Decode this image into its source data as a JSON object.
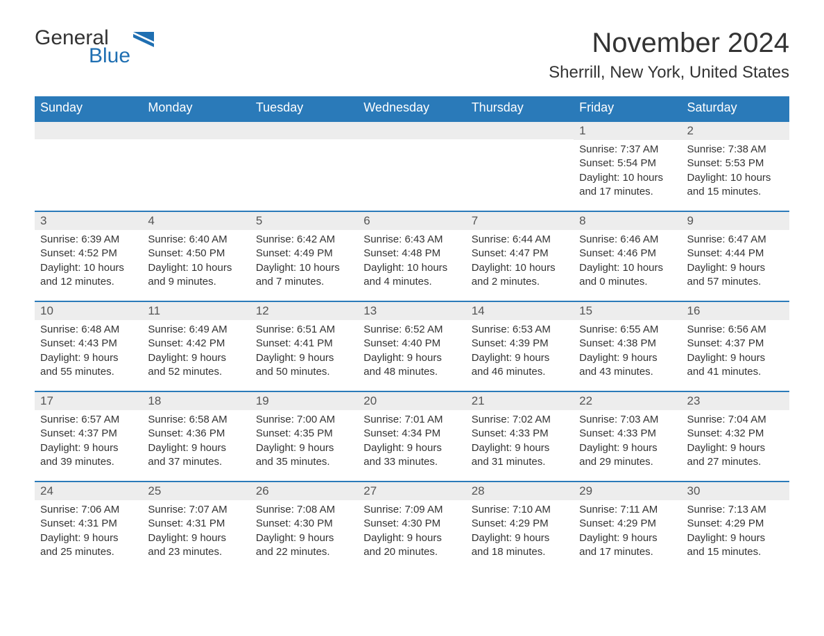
{
  "brand": {
    "word1": "General",
    "word2": "Blue",
    "word1_color": "#333333",
    "word2_color": "#1f6fb2",
    "flag_color": "#1f6fb2"
  },
  "title": "November 2024",
  "location": "Sherrill, New York, United States",
  "colors": {
    "header_bg": "#2a7ab9",
    "header_text": "#ffffff",
    "row_border": "#2a7ab9",
    "daynum_bg": "#ededed",
    "body_text": "#333333",
    "background": "#ffffff"
  },
  "day_names": [
    "Sunday",
    "Monday",
    "Tuesday",
    "Wednesday",
    "Thursday",
    "Friday",
    "Saturday"
  ],
  "weeks": [
    [
      null,
      null,
      null,
      null,
      null,
      {
        "n": "1",
        "sunrise": "7:37 AM",
        "sunset": "5:54 PM",
        "dl1": "Daylight: 10 hours",
        "dl2": "and 17 minutes."
      },
      {
        "n": "2",
        "sunrise": "7:38 AM",
        "sunset": "5:53 PM",
        "dl1": "Daylight: 10 hours",
        "dl2": "and 15 minutes."
      }
    ],
    [
      {
        "n": "3",
        "sunrise": "6:39 AM",
        "sunset": "4:52 PM",
        "dl1": "Daylight: 10 hours",
        "dl2": "and 12 minutes."
      },
      {
        "n": "4",
        "sunrise": "6:40 AM",
        "sunset": "4:50 PM",
        "dl1": "Daylight: 10 hours",
        "dl2": "and 9 minutes."
      },
      {
        "n": "5",
        "sunrise": "6:42 AM",
        "sunset": "4:49 PM",
        "dl1": "Daylight: 10 hours",
        "dl2": "and 7 minutes."
      },
      {
        "n": "6",
        "sunrise": "6:43 AM",
        "sunset": "4:48 PM",
        "dl1": "Daylight: 10 hours",
        "dl2": "and 4 minutes."
      },
      {
        "n": "7",
        "sunrise": "6:44 AM",
        "sunset": "4:47 PM",
        "dl1": "Daylight: 10 hours",
        "dl2": "and 2 minutes."
      },
      {
        "n": "8",
        "sunrise": "6:46 AM",
        "sunset": "4:46 PM",
        "dl1": "Daylight: 10 hours",
        "dl2": "and 0 minutes."
      },
      {
        "n": "9",
        "sunrise": "6:47 AM",
        "sunset": "4:44 PM",
        "dl1": "Daylight: 9 hours",
        "dl2": "and 57 minutes."
      }
    ],
    [
      {
        "n": "10",
        "sunrise": "6:48 AM",
        "sunset": "4:43 PM",
        "dl1": "Daylight: 9 hours",
        "dl2": "and 55 minutes."
      },
      {
        "n": "11",
        "sunrise": "6:49 AM",
        "sunset": "4:42 PM",
        "dl1": "Daylight: 9 hours",
        "dl2": "and 52 minutes."
      },
      {
        "n": "12",
        "sunrise": "6:51 AM",
        "sunset": "4:41 PM",
        "dl1": "Daylight: 9 hours",
        "dl2": "and 50 minutes."
      },
      {
        "n": "13",
        "sunrise": "6:52 AM",
        "sunset": "4:40 PM",
        "dl1": "Daylight: 9 hours",
        "dl2": "and 48 minutes."
      },
      {
        "n": "14",
        "sunrise": "6:53 AM",
        "sunset": "4:39 PM",
        "dl1": "Daylight: 9 hours",
        "dl2": "and 46 minutes."
      },
      {
        "n": "15",
        "sunrise": "6:55 AM",
        "sunset": "4:38 PM",
        "dl1": "Daylight: 9 hours",
        "dl2": "and 43 minutes."
      },
      {
        "n": "16",
        "sunrise": "6:56 AM",
        "sunset": "4:37 PM",
        "dl1": "Daylight: 9 hours",
        "dl2": "and 41 minutes."
      }
    ],
    [
      {
        "n": "17",
        "sunrise": "6:57 AM",
        "sunset": "4:37 PM",
        "dl1": "Daylight: 9 hours",
        "dl2": "and 39 minutes."
      },
      {
        "n": "18",
        "sunrise": "6:58 AM",
        "sunset": "4:36 PM",
        "dl1": "Daylight: 9 hours",
        "dl2": "and 37 minutes."
      },
      {
        "n": "19",
        "sunrise": "7:00 AM",
        "sunset": "4:35 PM",
        "dl1": "Daylight: 9 hours",
        "dl2": "and 35 minutes."
      },
      {
        "n": "20",
        "sunrise": "7:01 AM",
        "sunset": "4:34 PM",
        "dl1": "Daylight: 9 hours",
        "dl2": "and 33 minutes."
      },
      {
        "n": "21",
        "sunrise": "7:02 AM",
        "sunset": "4:33 PM",
        "dl1": "Daylight: 9 hours",
        "dl2": "and 31 minutes."
      },
      {
        "n": "22",
        "sunrise": "7:03 AM",
        "sunset": "4:33 PM",
        "dl1": "Daylight: 9 hours",
        "dl2": "and 29 minutes."
      },
      {
        "n": "23",
        "sunrise": "7:04 AM",
        "sunset": "4:32 PM",
        "dl1": "Daylight: 9 hours",
        "dl2": "and 27 minutes."
      }
    ],
    [
      {
        "n": "24",
        "sunrise": "7:06 AM",
        "sunset": "4:31 PM",
        "dl1": "Daylight: 9 hours",
        "dl2": "and 25 minutes."
      },
      {
        "n": "25",
        "sunrise": "7:07 AM",
        "sunset": "4:31 PM",
        "dl1": "Daylight: 9 hours",
        "dl2": "and 23 minutes."
      },
      {
        "n": "26",
        "sunrise": "7:08 AM",
        "sunset": "4:30 PM",
        "dl1": "Daylight: 9 hours",
        "dl2": "and 22 minutes."
      },
      {
        "n": "27",
        "sunrise": "7:09 AM",
        "sunset": "4:30 PM",
        "dl1": "Daylight: 9 hours",
        "dl2": "and 20 minutes."
      },
      {
        "n": "28",
        "sunrise": "7:10 AM",
        "sunset": "4:29 PM",
        "dl1": "Daylight: 9 hours",
        "dl2": "and 18 minutes."
      },
      {
        "n": "29",
        "sunrise": "7:11 AM",
        "sunset": "4:29 PM",
        "dl1": "Daylight: 9 hours",
        "dl2": "and 17 minutes."
      },
      {
        "n": "30",
        "sunrise": "7:13 AM",
        "sunset": "4:29 PM",
        "dl1": "Daylight: 9 hours",
        "dl2": "and 15 minutes."
      }
    ]
  ],
  "labels": {
    "sunrise_prefix": "Sunrise: ",
    "sunset_prefix": "Sunset: "
  }
}
